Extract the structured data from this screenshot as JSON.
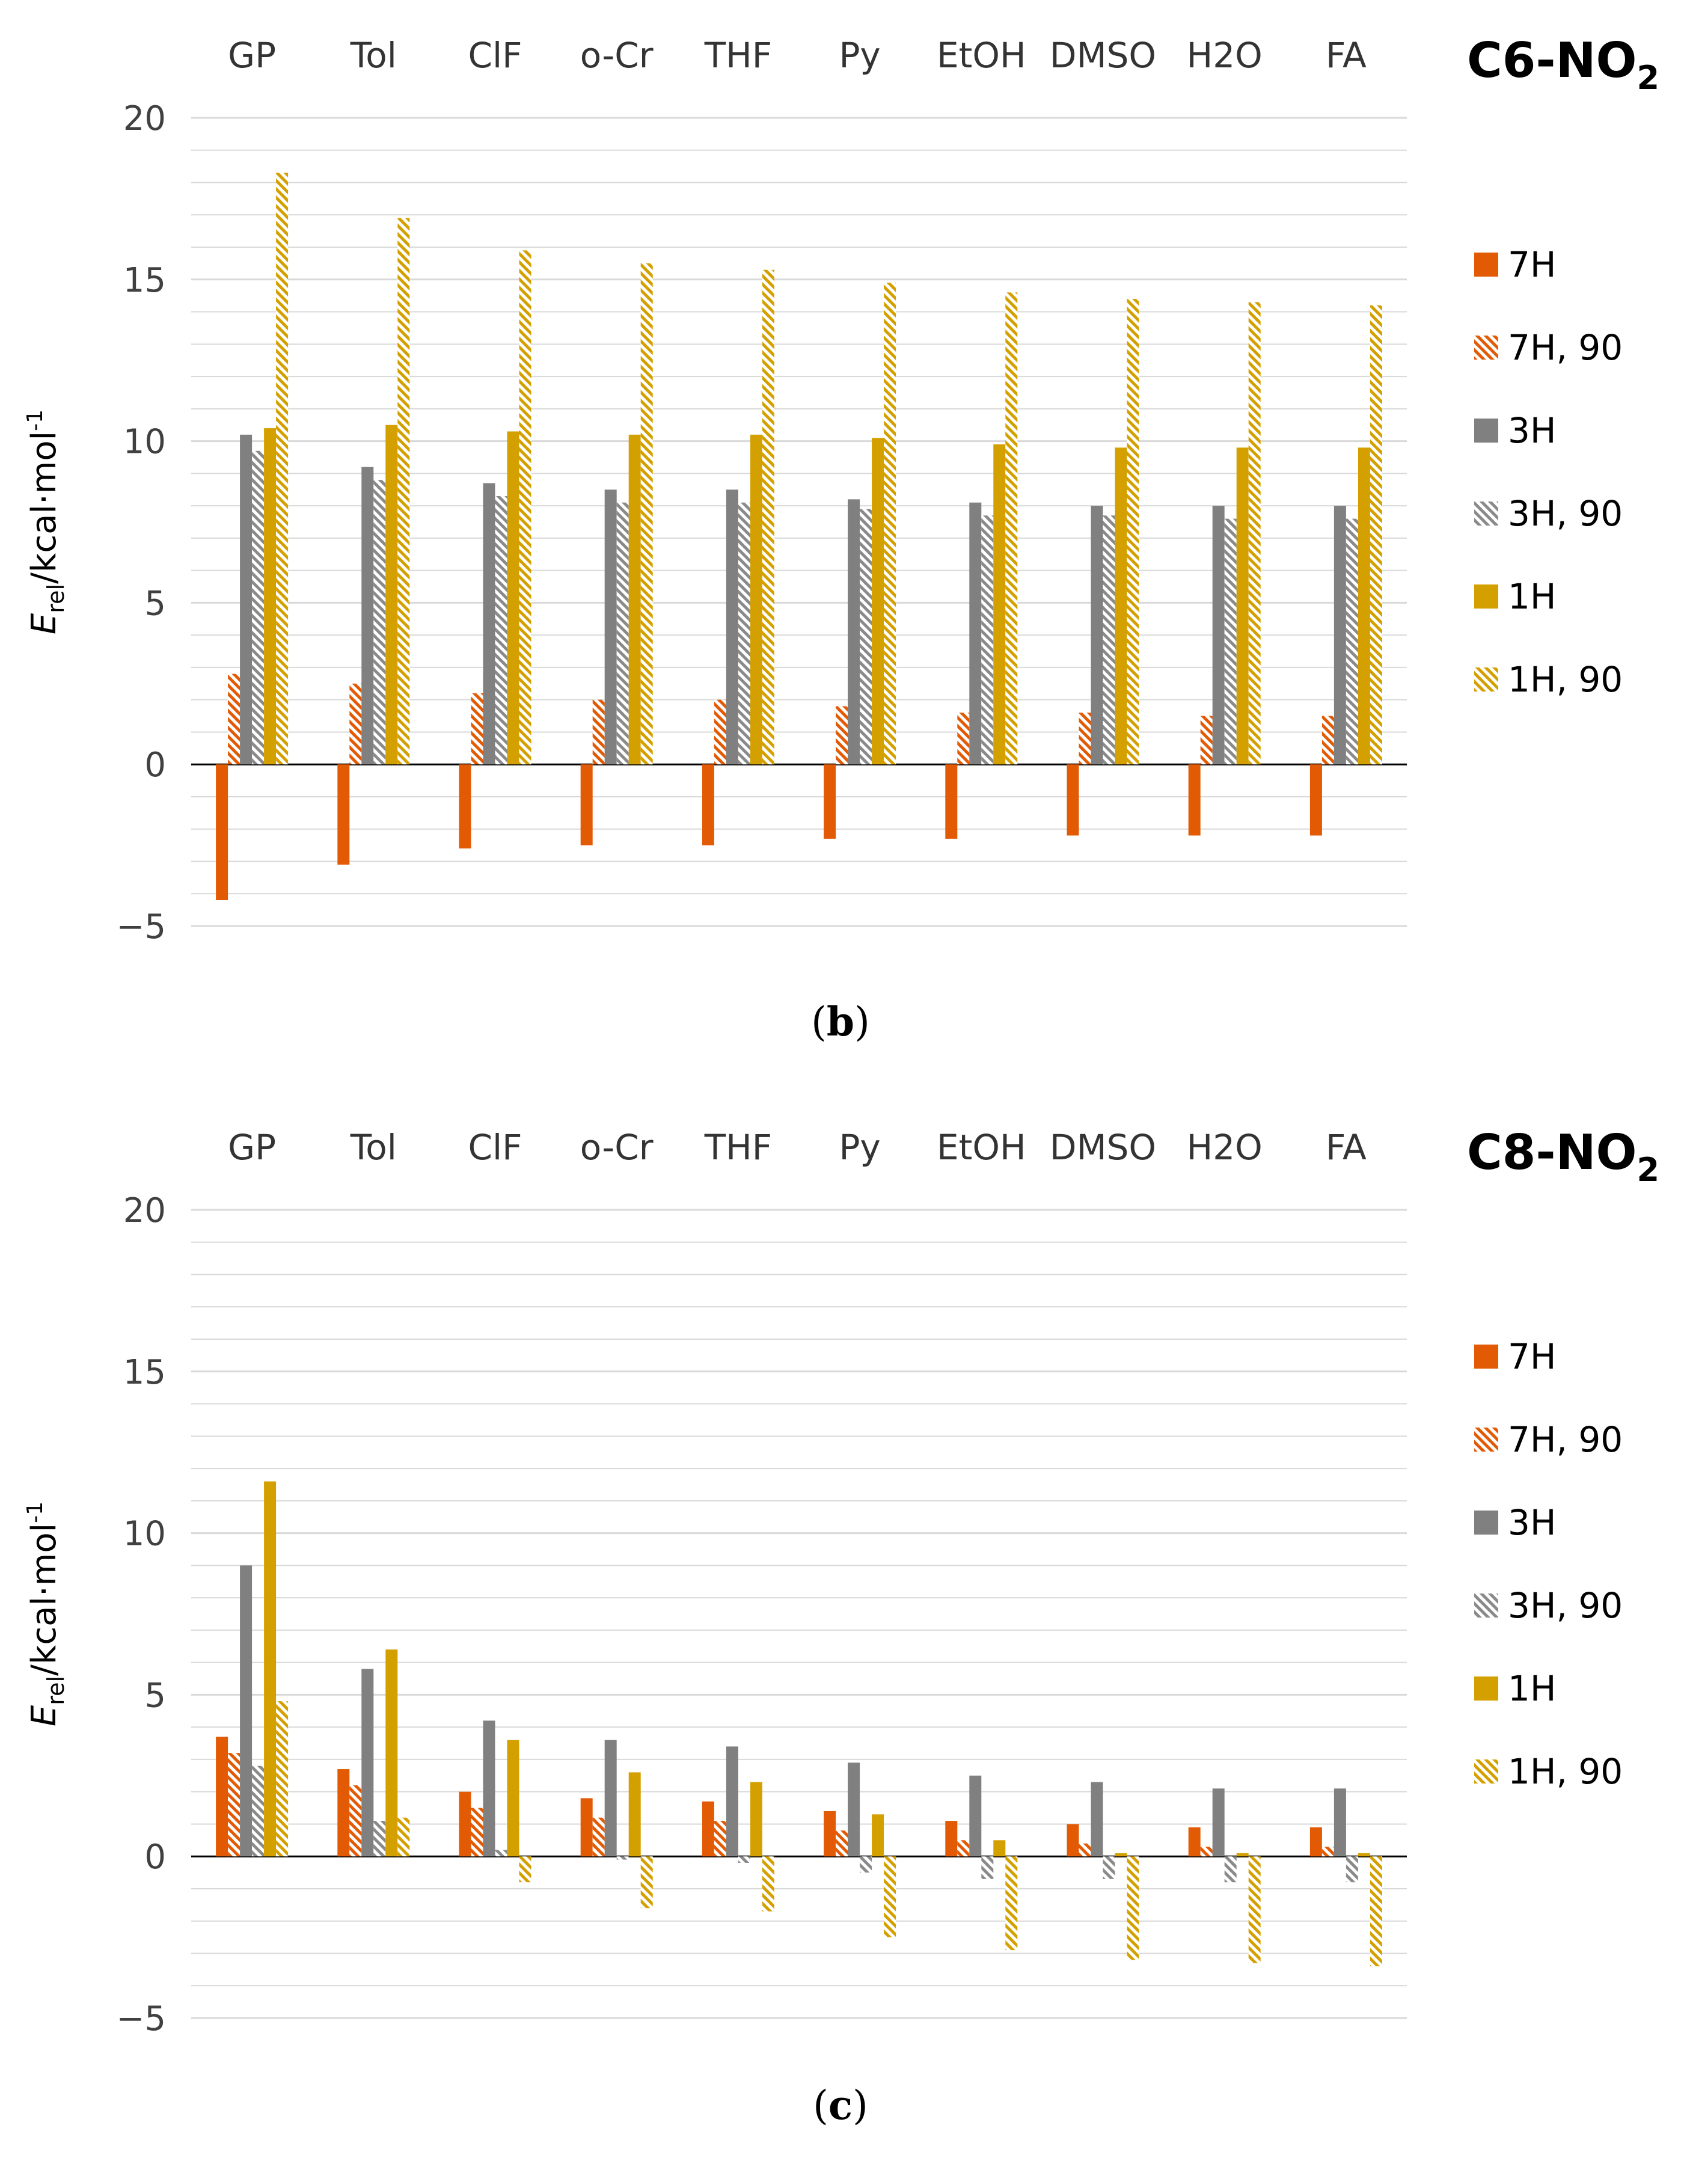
{
  "colors": {
    "7H": "#e35a05",
    "3H": "#808080",
    "1H": "#d4a000",
    "hatch7": "#e35a05",
    "hatch3": "#8a8a8a",
    "hatch1": "#d4a000",
    "grid": "#d9d9d9",
    "axis": "#000000",
    "text": "#404040"
  },
  "captions": [
    "b",
    "c"
  ],
  "chart_data": [
    {
      "type": "bar",
      "caption": "b",
      "title_main": "C6-NO",
      "title_sub": "2",
      "ylabel_main": "E",
      "ylabel_sub": "rel",
      "ylabel_rest": "/kcal·mol",
      "ylabel_sup": "-1",
      "ylim": [
        -5,
        20
      ],
      "yticks": [
        "−5",
        "0",
        "5",
        "10",
        "15",
        "20"
      ],
      "ytick_values": [
        -5,
        0,
        5,
        10,
        15,
        20
      ],
      "minor_grid_step": 1,
      "categories": [
        "GP",
        "Tol",
        "ClF",
        "o-Cr",
        "THF",
        "Py",
        "EtOH",
        "DMSO",
        "H2O",
        "FA"
      ],
      "series": [
        {
          "name": "7H",
          "pattern": "solid",
          "color_key": "7H",
          "values": [
            -4.2,
            -3.1,
            -2.6,
            -2.5,
            -2.5,
            -2.3,
            -2.3,
            -2.2,
            -2.2,
            -2.2
          ]
        },
        {
          "name": "7H, 90",
          "pattern": "hatch",
          "color_key": "hatch7",
          "values": [
            2.8,
            2.5,
            2.2,
            2.0,
            2.0,
            1.8,
            1.6,
            1.6,
            1.5,
            1.5
          ]
        },
        {
          "name": "3H",
          "pattern": "solid",
          "color_key": "3H",
          "values": [
            10.2,
            9.2,
            8.7,
            8.5,
            8.5,
            8.2,
            8.1,
            8.0,
            8.0,
            8.0
          ]
        },
        {
          "name": "3H, 90",
          "pattern": "hatch",
          "color_key": "hatch3",
          "values": [
            9.7,
            8.8,
            8.3,
            8.1,
            8.1,
            7.9,
            7.7,
            7.7,
            7.6,
            7.6
          ]
        },
        {
          "name": "1H",
          "pattern": "solid",
          "color_key": "1H",
          "values": [
            10.4,
            10.5,
            10.3,
            10.2,
            10.2,
            10.1,
            9.9,
            9.8,
            9.8,
            9.8
          ]
        },
        {
          "name": "1H, 90",
          "pattern": "hatch",
          "color_key": "hatch1",
          "values": [
            18.3,
            16.9,
            15.9,
            15.5,
            15.3,
            14.9,
            14.6,
            14.4,
            14.3,
            14.2
          ]
        }
      ]
    },
    {
      "type": "bar",
      "caption": "c",
      "title_main": "C8-NO",
      "title_sub": "2",
      "ylabel_main": "E",
      "ylabel_sub": "rel",
      "ylabel_rest": "/kcal·mol",
      "ylabel_sup": "-1",
      "ylim": [
        -5,
        20
      ],
      "yticks": [
        "−5",
        "0",
        "5",
        "10",
        "15",
        "20"
      ],
      "ytick_values": [
        -5,
        0,
        5,
        10,
        15,
        20
      ],
      "minor_grid_step": 1,
      "categories": [
        "GP",
        "Tol",
        "ClF",
        "o-Cr",
        "THF",
        "Py",
        "EtOH",
        "DMSO",
        "H2O",
        "FA"
      ],
      "series": [
        {
          "name": "7H",
          "pattern": "solid",
          "color_key": "7H",
          "values": [
            3.7,
            2.7,
            2.0,
            1.8,
            1.7,
            1.4,
            1.1,
            1.0,
            0.9,
            0.9
          ]
        },
        {
          "name": "7H, 90",
          "pattern": "hatch",
          "color_key": "hatch7",
          "values": [
            3.2,
            2.2,
            1.5,
            1.2,
            1.1,
            0.8,
            0.5,
            0.4,
            0.3,
            0.3
          ]
        },
        {
          "name": "3H",
          "pattern": "solid",
          "color_key": "3H",
          "values": [
            9.0,
            5.8,
            4.2,
            3.6,
            3.4,
            2.9,
            2.5,
            2.3,
            2.1,
            2.1
          ]
        },
        {
          "name": "3H, 90",
          "pattern": "hatch",
          "color_key": "hatch3",
          "values": [
            2.8,
            1.1,
            0.2,
            -0.1,
            -0.2,
            -0.5,
            -0.7,
            -0.7,
            -0.8,
            -0.8
          ]
        },
        {
          "name": "1H",
          "pattern": "solid",
          "color_key": "1H",
          "values": [
            11.6,
            6.4,
            3.6,
            2.6,
            2.3,
            1.3,
            0.5,
            0.1,
            0.1,
            0.1
          ]
        },
        {
          "name": "1H, 90",
          "pattern": "hatch",
          "color_key": "hatch1",
          "values": [
            4.8,
            1.2,
            -0.8,
            -1.6,
            -1.7,
            -2.5,
            -2.9,
            -3.2,
            -3.3,
            -3.4
          ]
        }
      ]
    }
  ]
}
